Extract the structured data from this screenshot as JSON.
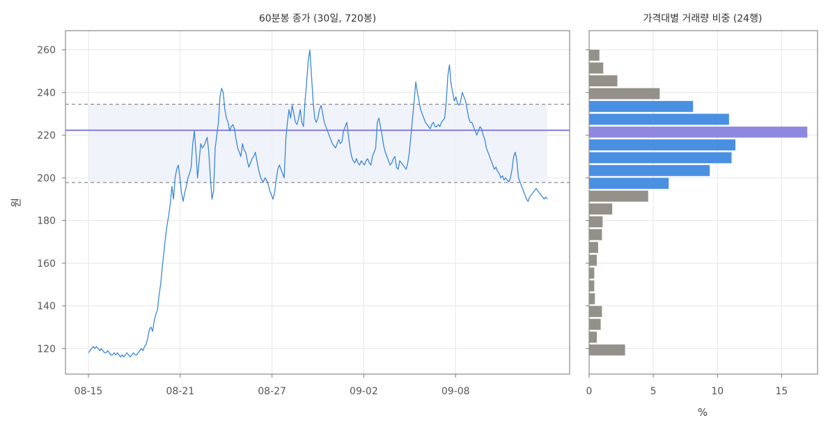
{
  "chart_data": [
    {
      "type": "line",
      "title": "60분봉 종가 (30일, 720봉)",
      "ylabel": "원",
      "xlabel": "",
      "x_ticks": [
        "08-15",
        "08-21",
        "08-27",
        "09-02",
        "09-08"
      ],
      "y_ticks": [
        120,
        140,
        160,
        180,
        200,
        220,
        240,
        260
      ],
      "ylim": [
        108,
        269
      ],
      "grid": true,
      "series": [
        {
          "color": "#3a87d6",
          "values": [
            118,
            119,
            120,
            121,
            120,
            121,
            120,
            119,
            120,
            119,
            118,
            118,
            119,
            118,
            117,
            117,
            118,
            117,
            118,
            117,
            116,
            117,
            116,
            117,
            118,
            117,
            116,
            117,
            118,
            117,
            117,
            118,
            119,
            120,
            119,
            121,
            122,
            125,
            129,
            130,
            128,
            133,
            136,
            138,
            145,
            150,
            158,
            165,
            172,
            178,
            182,
            188,
            196,
            190,
            200,
            204,
            206,
            200,
            193,
            189,
            193,
            196,
            200,
            202,
            205,
            216,
            222,
            212,
            200,
            208,
            216,
            214,
            215,
            217,
            219,
            212,
            200,
            190,
            194,
            214,
            220,
            226,
            238,
            242,
            240,
            232,
            228,
            226,
            222,
            224,
            225,
            223,
            218,
            214,
            212,
            210,
            216,
            213,
            212,
            208,
            205,
            207,
            209,
            210,
            212,
            208,
            204,
            201,
            199,
            198,
            200,
            199,
            197,
            194,
            192,
            190,
            193,
            199,
            204,
            206,
            204,
            202,
            200,
            218,
            226,
            232,
            228,
            234,
            230,
            226,
            225,
            228,
            232,
            226,
            224,
            236,
            245,
            255,
            260,
            248,
            236,
            228,
            226,
            228,
            232,
            234,
            230,
            226,
            224,
            222,
            220,
            218,
            216,
            215,
            214,
            216,
            218,
            216,
            217,
            222,
            224,
            226,
            220,
            214,
            210,
            208,
            207,
            209,
            207,
            206,
            208,
            207,
            206,
            208,
            209,
            207,
            206,
            210,
            212,
            214,
            226,
            228,
            224,
            220,
            215,
            212,
            210,
            208,
            206,
            207,
            209,
            210,
            205,
            204,
            208,
            207,
            206,
            205,
            204,
            207,
            212,
            220,
            228,
            236,
            245,
            240,
            236,
            232,
            230,
            228,
            226,
            225,
            224,
            223,
            225,
            226,
            224,
            224,
            225,
            224,
            226,
            227,
            228,
            236,
            248,
            253,
            244,
            240,
            236,
            238,
            235,
            234,
            236,
            240,
            238,
            236,
            232,
            228,
            226,
            226,
            224,
            222,
            220,
            222,
            224,
            223,
            220,
            218,
            214,
            212,
            210,
            208,
            206,
            204,
            205,
            203,
            202,
            200,
            201,
            199,
            200,
            199,
            198,
            200,
            204,
            210,
            212,
            208,
            200,
            198,
            196,
            194,
            192,
            190,
            189,
            191,
            192,
            193,
            194,
            195,
            194,
            193,
            192,
            191,
            190,
            191,
            190
          ]
        }
      ],
      "annotations": [
        {
          "kind": "value-area-high",
          "value": 234.5
        },
        {
          "kind": "poc",
          "value": 222.3
        },
        {
          "kind": "value-area-low",
          "value": 197.8
        }
      ]
    },
    {
      "type": "bar",
      "orientation": "horizontal",
      "title": "가격대별 거래량 비중 (24행)",
      "xlabel": "%",
      "x_ticks": [
        0,
        5,
        10,
        15
      ],
      "xlim": [
        0,
        17.8
      ],
      "bin_range": [
        116.3,
        260.5
      ],
      "grid": true,
      "colors": {
        "normal": "#939189",
        "value_area": "#4a90e2",
        "poc": "#8e88e0"
      },
      "values": [
        2.8,
        0.6,
        0.9,
        1.0,
        0.45,
        0.4,
        0.4,
        0.6,
        0.7,
        1.0,
        1.05,
        1.8,
        4.6,
        6.2,
        9.4,
        11.1,
        11.4,
        17.0,
        10.9,
        8.1,
        5.5,
        2.2,
        1.1,
        0.8
      ],
      "categories_state": [
        "normal",
        "normal",
        "normal",
        "normal",
        "normal",
        "normal",
        "normal",
        "normal",
        "normal",
        "normal",
        "normal",
        "normal",
        "normal",
        "value_area",
        "value_area",
        "value_area",
        "value_area",
        "poc",
        "value_area",
        "value_area",
        "normal",
        "normal",
        "normal",
        "normal"
      ]
    }
  ]
}
